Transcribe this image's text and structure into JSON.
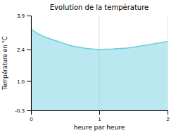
{
  "chart_data": {
    "type": "area",
    "title": "Evolution de la température",
    "x_label": "heure par heure",
    "y_label": "Température en °C",
    "x": [
      0,
      0.1,
      0.2,
      0.3,
      0.4,
      0.5,
      0.6,
      0.7,
      0.8,
      0.9,
      1.0,
      1.05,
      1.1,
      1.2,
      1.3,
      1.4,
      1.5,
      1.6,
      1.7,
      1.8,
      1.9,
      2.0
    ],
    "values": [
      3.3,
      3.1,
      2.95,
      2.85,
      2.75,
      2.65,
      2.55,
      2.5,
      2.45,
      2.42,
      2.4,
      2.4,
      2.41,
      2.42,
      2.44,
      2.46,
      2.5,
      2.55,
      2.6,
      2.65,
      2.7,
      2.75
    ],
    "color": "#66ccdd",
    "xlim": [
      0,
      2
    ],
    "ylim": [
      -0.3,
      3.9
    ],
    "xticks": [
      0,
      1,
      2
    ],
    "yticks": [
      -0.3,
      {
        "value": 1.0,
        "label": "1.0"
      },
      2.4,
      3.9
    ],
    "grid": "x"
  }
}
